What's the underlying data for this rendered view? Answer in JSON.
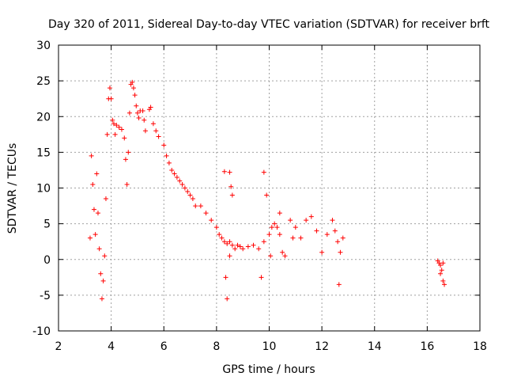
{
  "chart_data": {
    "type": "scatter",
    "title": "Day 320 of 2011, Sidereal Day-to-day VTEC variation (SDTVAR) for receiver brft",
    "xlabel": "GPS time / hours",
    "ylabel": "SDTVAR / TECUs",
    "xlim": [
      2,
      18
    ],
    "ylim": [
      -10,
      30
    ],
    "xticks": [
      2,
      4,
      6,
      8,
      10,
      12,
      14,
      16,
      18
    ],
    "yticks": [
      -10,
      -5,
      0,
      5,
      10,
      15,
      20,
      25,
      30
    ],
    "grid": true,
    "marker": "+",
    "series": [
      {
        "name": "SDTVAR",
        "color": "#ff0000",
        "points": [
          [
            3.2,
            3.0
          ],
          [
            3.25,
            14.5
          ],
          [
            3.3,
            10.5
          ],
          [
            3.35,
            7.0
          ],
          [
            3.4,
            3.5
          ],
          [
            3.45,
            12.0
          ],
          [
            3.5,
            6.5
          ],
          [
            3.55,
            1.5
          ],
          [
            3.6,
            -2.0
          ],
          [
            3.65,
            -5.5
          ],
          [
            3.7,
            -3.0
          ],
          [
            3.75,
            0.5
          ],
          [
            3.8,
            8.5
          ],
          [
            3.85,
            17.5
          ],
          [
            3.9,
            22.5
          ],
          [
            3.95,
            24.0
          ],
          [
            4.0,
            22.5
          ],
          [
            4.05,
            19.5
          ],
          [
            4.1,
            19.0
          ],
          [
            4.15,
            17.5
          ],
          [
            4.2,
            18.8
          ],
          [
            4.3,
            18.5
          ],
          [
            4.4,
            18.2
          ],
          [
            4.5,
            17.0
          ],
          [
            4.55,
            14.0
          ],
          [
            4.6,
            10.5
          ],
          [
            4.65,
            15.0
          ],
          [
            4.7,
            20.5
          ],
          [
            4.75,
            24.5
          ],
          [
            4.8,
            24.8
          ],
          [
            4.85,
            24.0
          ],
          [
            4.9,
            23.0
          ],
          [
            4.95,
            21.5
          ],
          [
            5.0,
            20.5
          ],
          [
            5.05,
            19.8
          ],
          [
            5.1,
            20.8
          ],
          [
            5.2,
            20.8
          ],
          [
            5.25,
            19.5
          ],
          [
            5.3,
            18.0
          ],
          [
            5.45,
            21.0
          ],
          [
            5.5,
            21.3
          ],
          [
            5.6,
            19.0
          ],
          [
            5.7,
            18.0
          ],
          [
            5.8,
            17.2
          ],
          [
            6.0,
            16.0
          ],
          [
            6.1,
            14.5
          ],
          [
            6.2,
            13.5
          ],
          [
            6.3,
            12.5
          ],
          [
            6.4,
            12.0
          ],
          [
            6.5,
            11.5
          ],
          [
            6.6,
            11.0
          ],
          [
            6.7,
            10.5
          ],
          [
            6.8,
            10.0
          ],
          [
            6.9,
            9.5
          ],
          [
            7.0,
            9.0
          ],
          [
            7.1,
            8.5
          ],
          [
            7.2,
            7.5
          ],
          [
            7.4,
            7.5
          ],
          [
            7.6,
            6.5
          ],
          [
            7.8,
            5.5
          ],
          [
            8.0,
            4.5
          ],
          [
            8.1,
            3.5
          ],
          [
            8.2,
            3.0
          ],
          [
            8.3,
            2.5
          ],
          [
            8.4,
            2.2
          ],
          [
            8.5,
            2.5
          ],
          [
            8.6,
            2.0
          ],
          [
            8.7,
            1.5
          ],
          [
            8.8,
            2.0
          ],
          [
            8.9,
            1.8
          ],
          [
            9.0,
            1.5
          ],
          [
            9.2,
            1.8
          ],
          [
            9.4,
            2.0
          ],
          [
            9.6,
            1.5
          ],
          [
            9.8,
            2.5
          ],
          [
            10.0,
            3.5
          ],
          [
            10.1,
            4.5
          ],
          [
            10.2,
            5.0
          ],
          [
            10.3,
            4.5
          ],
          [
            10.4,
            3.5
          ],
          [
            10.5,
            1.0
          ],
          [
            10.6,
            0.5
          ],
          [
            8.3,
            12.3
          ],
          [
            8.5,
            12.2
          ],
          [
            8.55,
            10.2
          ],
          [
            8.6,
            9.0
          ],
          [
            8.4,
            -5.5
          ],
          [
            8.35,
            -2.5
          ],
          [
            8.5,
            0.5
          ],
          [
            9.8,
            12.2
          ],
          [
            9.9,
            9.0
          ],
          [
            9.7,
            -2.5
          ],
          [
            10.05,
            0.5
          ],
          [
            10.4,
            6.5
          ],
          [
            10.8,
            5.5
          ],
          [
            10.9,
            3.0
          ],
          [
            11.0,
            4.5
          ],
          [
            11.2,
            3.0
          ],
          [
            11.4,
            5.5
          ],
          [
            11.6,
            6.0
          ],
          [
            11.8,
            4.0
          ],
          [
            12.0,
            1.0
          ],
          [
            12.2,
            3.5
          ],
          [
            12.4,
            5.5
          ],
          [
            12.5,
            4.0
          ],
          [
            12.6,
            2.5
          ],
          [
            12.7,
            1.0
          ],
          [
            12.8,
            3.0
          ],
          [
            12.65,
            -3.5
          ],
          [
            16.4,
            -0.2
          ],
          [
            16.45,
            -0.5
          ],
          [
            16.5,
            -0.8
          ],
          [
            16.55,
            -1.5
          ],
          [
            16.6,
            -3.0
          ],
          [
            16.65,
            -3.5
          ],
          [
            16.5,
            -2.0
          ],
          [
            16.6,
            -0.5
          ]
        ]
      }
    ]
  }
}
